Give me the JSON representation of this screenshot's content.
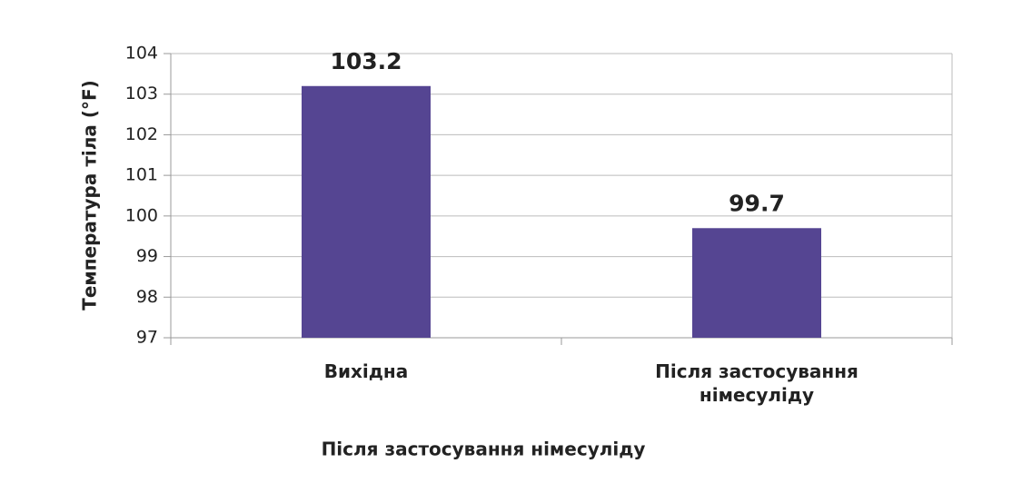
{
  "chart_data": {
    "type": "bar",
    "categories": [
      "Вихідна",
      "Після застосування німесуліду"
    ],
    "values": [
      103.2,
      99.7
    ],
    "color": "#554592",
    "xlabel": "Після застосування німесуліду",
    "ylabel": "Температура тіла (°F)",
    "ylim": [
      97,
      104
    ],
    "yticks": [
      97,
      98,
      99,
      100,
      101,
      102,
      103,
      104
    ],
    "grid": true
  }
}
